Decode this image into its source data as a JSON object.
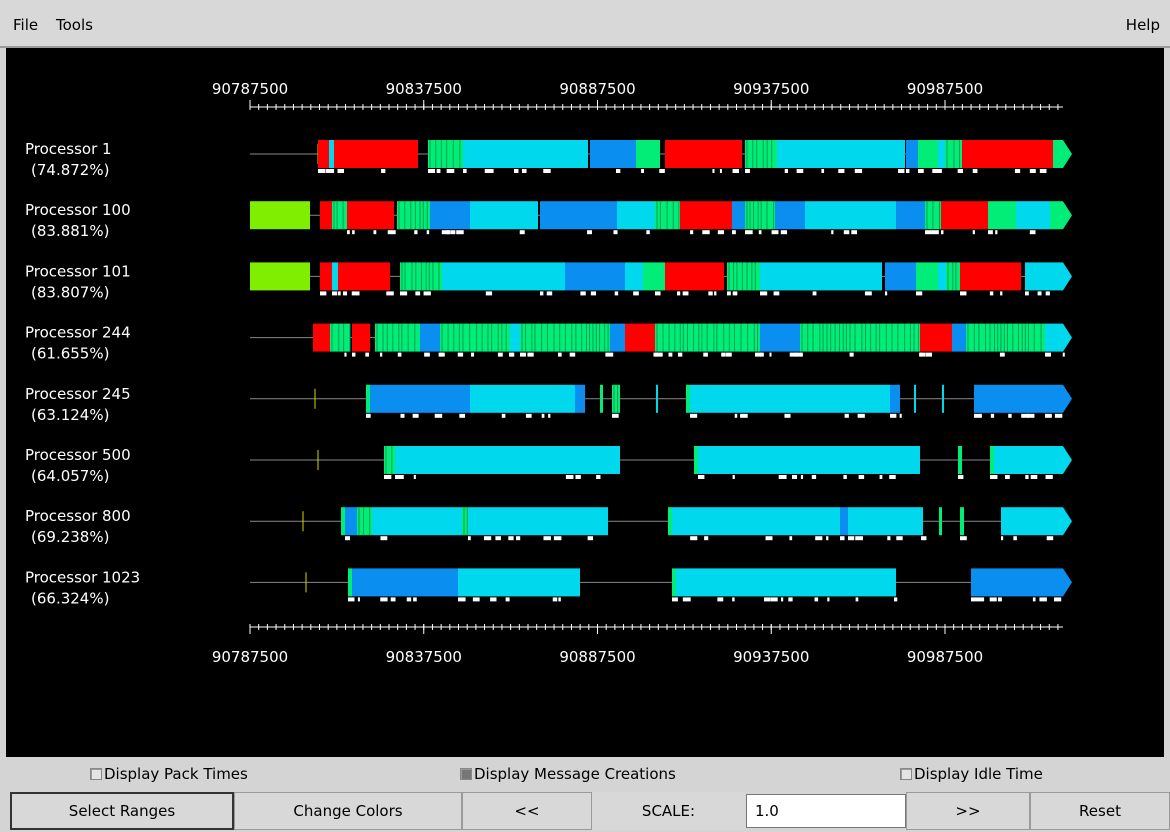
{
  "menu": {
    "items": [
      "File",
      "Tools"
    ],
    "help": "Help"
  },
  "timeline": {
    "axis_labels": [
      90787500,
      90837500,
      90887500,
      90937500,
      90987500
    ],
    "processors": [
      {
        "name": "Processor 1",
        "utilization": "(74.872%)"
      },
      {
        "name": "Processor 100",
        "utilization": "(83.881%)"
      },
      {
        "name": "Processor 101",
        "utilization": "(83.807%)"
      },
      {
        "name": "Processor 244",
        "utilization": "(61.655%)"
      },
      {
        "name": "Processor 245",
        "utilization": "(63.124%)"
      },
      {
        "name": "Processor 500",
        "utilization": "(64.057%)"
      },
      {
        "name": "Processor 800",
        "utilization": "(69.238%)"
      },
      {
        "name": "Processor 1023",
        "utilization": "(66.324%)"
      }
    ]
  },
  "options": [
    {
      "label": "Display Pack Times",
      "checked": false
    },
    {
      "label": "Display Message Creations",
      "checked": true
    },
    {
      "label": "Display Idle Time",
      "checked": false
    }
  ],
  "toolbar": {
    "buttons": [
      "Select Ranges",
      "Change Colors",
      "<<"
    ],
    "scale_label": "SCALE:",
    "scale_value": "1.0",
    "buttons_right": [
      ">>",
      "Reset"
    ]
  }
}
